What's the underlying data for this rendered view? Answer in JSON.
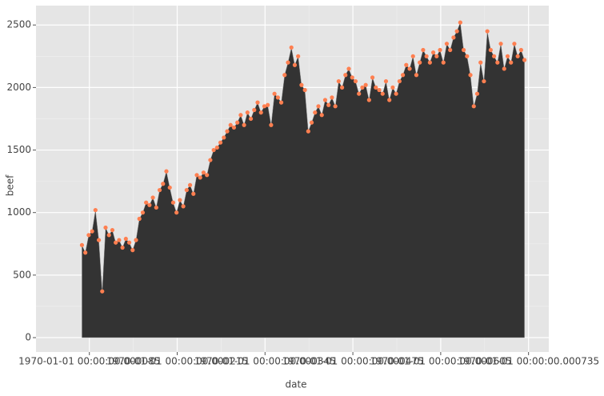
{
  "chart_data": {
    "type": "area",
    "xlabel": "date",
    "ylabel": "beef",
    "x": [
      74,
      79,
      84,
      89,
      94,
      99,
      104,
      109,
      114,
      119,
      124,
      129,
      134,
      139,
      144,
      149,
      154,
      159,
      164,
      169,
      174,
      179,
      184,
      189,
      194,
      199,
      204,
      209,
      214,
      219,
      224,
      229,
      234,
      239,
      244,
      249,
      254,
      259,
      264,
      269,
      274,
      279,
      284,
      289,
      294,
      299,
      304,
      309,
      314,
      319,
      324,
      329,
      334,
      339,
      344,
      349,
      354,
      359,
      364,
      369,
      374,
      379,
      384,
      389,
      394,
      399,
      404,
      409,
      414,
      419,
      424,
      429,
      434,
      439,
      444,
      449,
      454,
      459,
      464,
      469,
      474,
      479,
      484,
      489,
      494,
      499,
      504,
      509,
      514,
      519,
      524,
      529,
      534,
      539,
      544,
      549,
      554,
      559,
      564,
      569,
      574,
      579,
      584,
      589,
      594,
      599,
      604,
      609,
      614,
      619,
      624,
      629,
      634,
      639,
      644,
      649,
      654,
      659,
      664,
      669,
      674,
      679,
      684,
      689,
      694,
      699,
      704,
      709,
      714,
      719,
      724,
      729
    ],
    "series": [
      {
        "name": "beef",
        "color": "#ff7f50",
        "fill": "#333333",
        "values": [
          740,
          680,
          820,
          850,
          1020,
          780,
          370,
          880,
          820,
          860,
          760,
          780,
          720,
          790,
          760,
          700,
          780,
          950,
          1000,
          1080,
          1060,
          1120,
          1040,
          1180,
          1230,
          1330,
          1200,
          1080,
          1000,
          1100,
          1050,
          1180,
          1220,
          1150,
          1300,
          1280,
          1320,
          1300,
          1420,
          1500,
          1520,
          1560,
          1600,
          1650,
          1700,
          1680,
          1720,
          1780,
          1700,
          1800,
          1750,
          1820,
          1880,
          1800,
          1850,
          1860,
          1700,
          1950,
          1920,
          1880,
          2100,
          2200,
          2320,
          2180,
          2250,
          2020,
          1980,
          1650,
          1720,
          1800,
          1850,
          1780,
          1900,
          1860,
          1920,
          1850,
          2050,
          2000,
          2100,
          2150,
          2080,
          2050,
          1950,
          2000,
          2020,
          1900,
          2080,
          2000,
          1980,
          1950,
          2050,
          1900,
          2000,
          1950,
          2050,
          2100,
          2180,
          2150,
          2250,
          2100,
          2200,
          2300,
          2250,
          2200,
          2280,
          2250,
          2300,
          2200,
          2350,
          2300,
          2400,
          2450,
          2520,
          2300,
          2250,
          2100,
          1850,
          1950,
          2200,
          2050,
          2450,
          2300,
          2250,
          2200,
          2350,
          2150,
          2250,
          2200,
          2350,
          2250,
          2300,
          2220
        ]
      }
    ],
    "xlim": [
      6,
      765
    ],
    "xticks": [
      {
        "value": 85,
        "label": "1970-01-01 00:00:00.000085"
      },
      {
        "value": 215,
        "label": "1970-01-01 00:00:00.000215"
      },
      {
        "value": 345,
        "label": "1970-01-01 00:00:00.000345"
      },
      {
        "value": 475,
        "label": "1970-01-01 00:00:00.000475"
      },
      {
        "value": 605,
        "label": "1970-01-01 00:00:00.000605"
      },
      {
        "value": 735,
        "label": "1970-01-01 00:00:00.000735"
      }
    ],
    "ylim": [
      -115,
      2655
    ],
    "yticks": [
      0,
      500,
      1000,
      1500,
      2000,
      2500
    ],
    "grid": true
  }
}
